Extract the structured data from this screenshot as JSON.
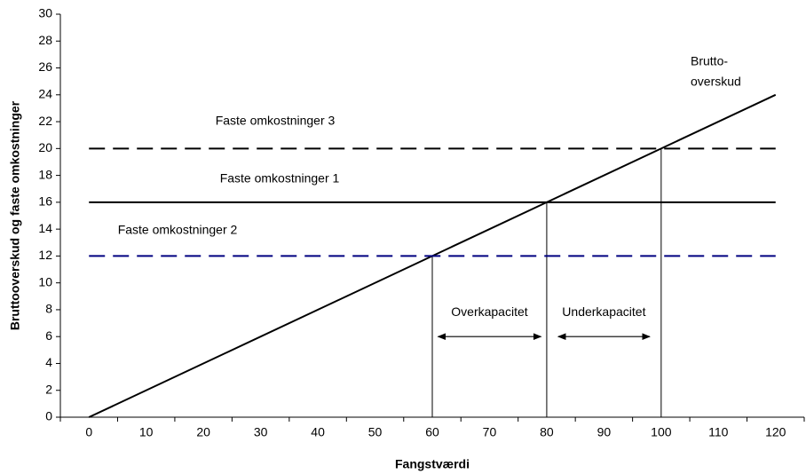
{
  "chart_data": {
    "type": "line",
    "x_label": "Fangstværdi",
    "y_label": "Bruttooverskud og faste omkostninger",
    "xlim": [
      -5,
      125
    ],
    "xticks": [
      0,
      10,
      20,
      30,
      40,
      50,
      60,
      70,
      80,
      90,
      100,
      110,
      120
    ],
    "ylim": [
      0,
      30
    ],
    "yticks": [
      0,
      2,
      4,
      6,
      8,
      10,
      12,
      14,
      16,
      18,
      20,
      22,
      24,
      26,
      28,
      30
    ],
    "series": [
      {
        "name": [
          "Brutto-",
          "overskud"
        ],
        "color": "#000000",
        "dash": "solid",
        "x": [
          0,
          120
        ],
        "values": [
          0,
          24
        ]
      },
      {
        "name": "Faste omkostninger 3",
        "color": "#000000",
        "dash": "dashed",
        "x": [
          0,
          120
        ],
        "values": [
          20,
          20
        ]
      },
      {
        "name": "Faste omkostninger 1",
        "color": "#000000",
        "dash": "solid",
        "x": [
          0,
          120
        ],
        "values": [
          16,
          16
        ]
      },
      {
        "name": "Faste omkostninger 2",
        "color": "#000080",
        "dash": "dashed",
        "x": [
          0,
          120
        ],
        "values": [
          12,
          12
        ]
      }
    ],
    "drop_lines": {
      "x": [
        60,
        80,
        100
      ],
      "values": [
        12,
        16,
        20
      ]
    },
    "ranges": [
      {
        "label": "Overkapacitet",
        "x": [
          61,
          79
        ],
        "y": 6
      },
      {
        "label": "Underkapacitet",
        "x": [
          82,
          98
        ],
        "y": 6
      }
    ]
  }
}
